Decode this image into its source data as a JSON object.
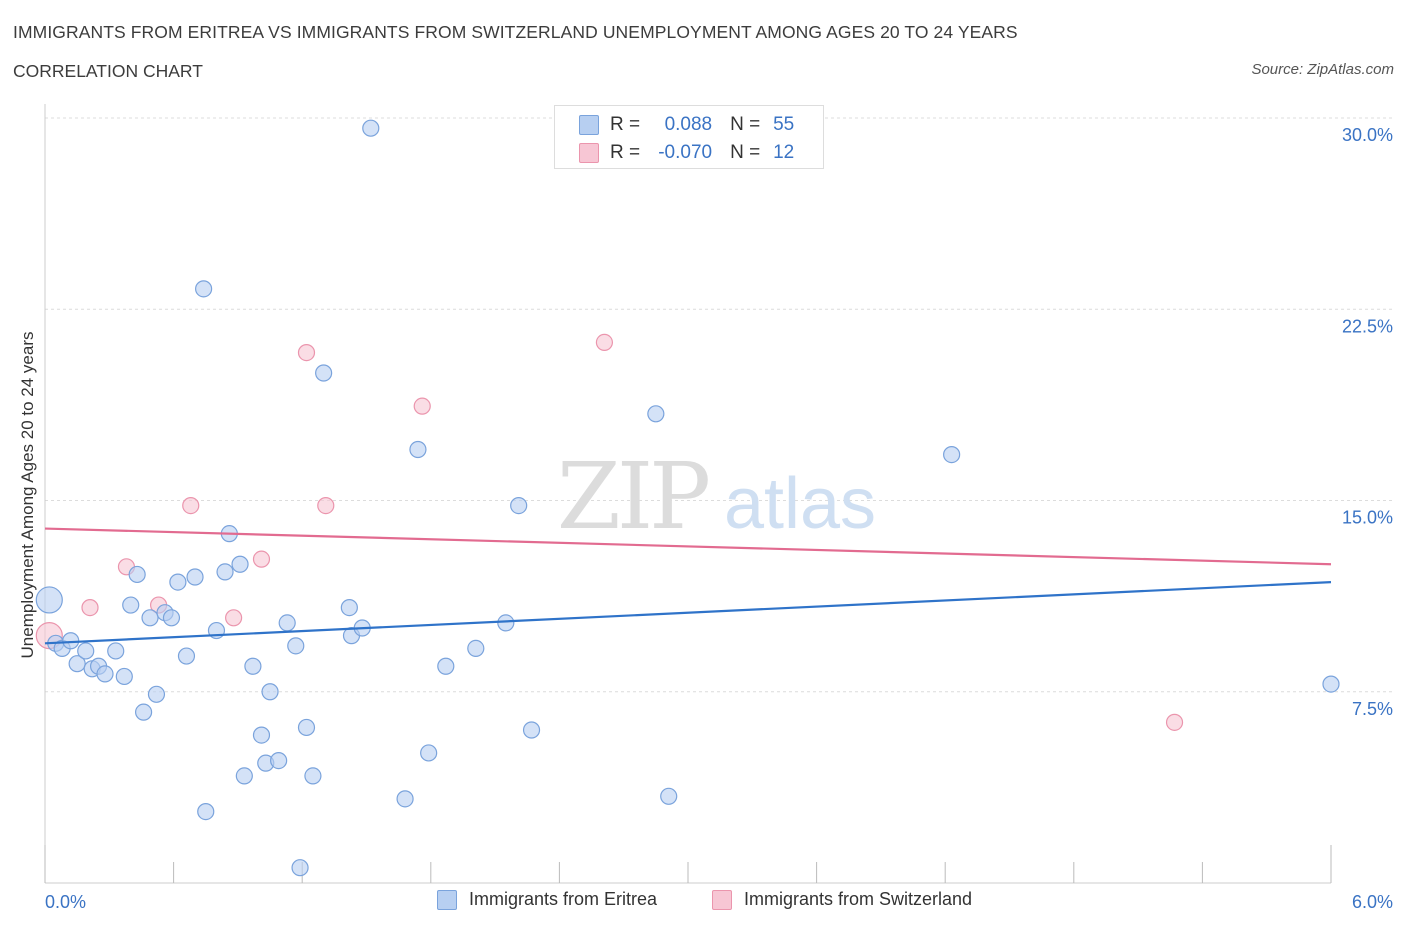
{
  "header": {
    "title": "IMMIGRANTS FROM ERITREA VS IMMIGRANTS FROM SWITZERLAND UNEMPLOYMENT AMONG AGES 20 TO 24 YEARS",
    "subtitle": "CORRELATION CHART",
    "source": "Source: ZipAtlas.com"
  },
  "legend": {
    "r_label": "R =",
    "n_label": "N =",
    "rows": [
      {
        "r": "0.088",
        "n": "55"
      },
      {
        "r": "-0.070",
        "n": "12"
      }
    ]
  },
  "watermark": {
    "zip": "ZIP",
    "atlas": "atlas"
  },
  "colors": {
    "eritrea_fill": "#b7cff1",
    "eritrea_stroke": "#7aa3dc",
    "eritrea_line": "#2f73c9",
    "switzerland_fill": "#f7c6d4",
    "switzerland_stroke": "#eb95ad",
    "switzerland_line": "#e26b90",
    "axis_text": "#3a73c4"
  },
  "chart_data": {
    "type": "scatter",
    "title": "IMMIGRANTS FROM ERITREA VS IMMIGRANTS FROM SWITZERLAND UNEMPLOYMENT AMONG AGES 20 TO 24 YEARS",
    "xlabel": "",
    "ylabel": "Unemployment Among Ages 20 to 24 years",
    "xlim": [
      0,
      6
    ],
    "ylim": [
      0,
      30
    ],
    "x_tick_labels": [
      {
        "value": 0,
        "label": "0.0%"
      },
      {
        "value": 6,
        "label": "6.0%"
      }
    ],
    "y_tick_labels": [
      {
        "value": 7.5,
        "label": "7.5%"
      },
      {
        "value": 15,
        "label": "15.0%"
      },
      {
        "value": 22.5,
        "label": "22.5%"
      },
      {
        "value": 30,
        "label": "30.0%"
      }
    ],
    "series": [
      {
        "name": "Immigrants from Eritrea",
        "r": 0.088,
        "n": 55,
        "trend": {
          "x0": 0,
          "y0": 9.4,
          "x1": 6,
          "y1": 11.8
        },
        "points": [
          {
            "x": 0.02,
            "y": 11.1,
            "big": true
          },
          {
            "x": 0.05,
            "y": 9.4
          },
          {
            "x": 0.08,
            "y": 9.2
          },
          {
            "x": 0.12,
            "y": 9.5
          },
          {
            "x": 0.15,
            "y": 8.6
          },
          {
            "x": 0.19,
            "y": 9.1
          },
          {
            "x": 0.22,
            "y": 8.4
          },
          {
            "x": 0.25,
            "y": 8.5
          },
          {
            "x": 0.28,
            "y": 8.2
          },
          {
            "x": 0.33,
            "y": 9.1
          },
          {
            "x": 0.37,
            "y": 8.1
          },
          {
            "x": 0.4,
            "y": 10.9
          },
          {
            "x": 0.43,
            "y": 12.1
          },
          {
            "x": 0.46,
            "y": 6.7
          },
          {
            "x": 0.49,
            "y": 10.4
          },
          {
            "x": 0.52,
            "y": 7.4
          },
          {
            "x": 0.56,
            "y": 10.6
          },
          {
            "x": 0.59,
            "y": 10.4
          },
          {
            "x": 0.62,
            "y": 11.8
          },
          {
            "x": 0.66,
            "y": 8.9
          },
          {
            "x": 0.7,
            "y": 12.0
          },
          {
            "x": 0.74,
            "y": 23.3
          },
          {
            "x": 0.75,
            "y": 2.8
          },
          {
            "x": 0.8,
            "y": 9.9
          },
          {
            "x": 0.84,
            "y": 12.2
          },
          {
            "x": 0.86,
            "y": 13.7
          },
          {
            "x": 0.91,
            "y": 12.5
          },
          {
            "x": 0.93,
            "y": 4.2
          },
          {
            "x": 0.97,
            "y": 8.5
          },
          {
            "x": 1.01,
            "y": 5.8
          },
          {
            "x": 1.03,
            "y": 4.7
          },
          {
            "x": 1.05,
            "y": 7.5
          },
          {
            "x": 1.09,
            "y": 4.8
          },
          {
            "x": 1.13,
            "y": 10.2
          },
          {
            "x": 1.17,
            "y": 9.3
          },
          {
            "x": 1.19,
            "y": 0.6
          },
          {
            "x": 1.22,
            "y": 6.1
          },
          {
            "x": 1.25,
            "y": 4.2
          },
          {
            "x": 1.3,
            "y": 20.0
          },
          {
            "x": 1.42,
            "y": 10.8
          },
          {
            "x": 1.43,
            "y": 9.7
          },
          {
            "x": 1.48,
            "y": 10.0
          },
          {
            "x": 1.52,
            "y": 29.6
          },
          {
            "x": 1.68,
            "y": 3.3
          },
          {
            "x": 1.74,
            "y": 17.0
          },
          {
            "x": 1.79,
            "y": 5.1
          },
          {
            "x": 1.87,
            "y": 8.5
          },
          {
            "x": 2.01,
            "y": 9.2
          },
          {
            "x": 2.15,
            "y": 10.2
          },
          {
            "x": 2.21,
            "y": 14.8
          },
          {
            "x": 2.27,
            "y": 6.0
          },
          {
            "x": 2.85,
            "y": 18.4
          },
          {
            "x": 2.91,
            "y": 3.4
          },
          {
            "x": 4.23,
            "y": 16.8
          },
          {
            "x": 6.0,
            "y": 7.8
          }
        ]
      },
      {
        "name": "Immigrants from Switzerland",
        "r": -0.07,
        "n": 12,
        "trend": {
          "x0": 0,
          "y0": 13.9,
          "x1": 6,
          "y1": 12.5
        },
        "points": [
          {
            "x": 0.02,
            "y": 9.7,
            "big": true
          },
          {
            "x": 0.21,
            "y": 10.8
          },
          {
            "x": 0.38,
            "y": 12.4
          },
          {
            "x": 0.53,
            "y": 10.9
          },
          {
            "x": 0.68,
            "y": 14.8
          },
          {
            "x": 0.88,
            "y": 10.4
          },
          {
            "x": 1.01,
            "y": 12.7
          },
          {
            "x": 1.22,
            "y": 20.8
          },
          {
            "x": 1.31,
            "y": 14.8
          },
          {
            "x": 1.76,
            "y": 18.7
          },
          {
            "x": 2.61,
            "y": 21.2
          },
          {
            "x": 5.27,
            "y": 6.3
          }
        ]
      }
    ]
  }
}
